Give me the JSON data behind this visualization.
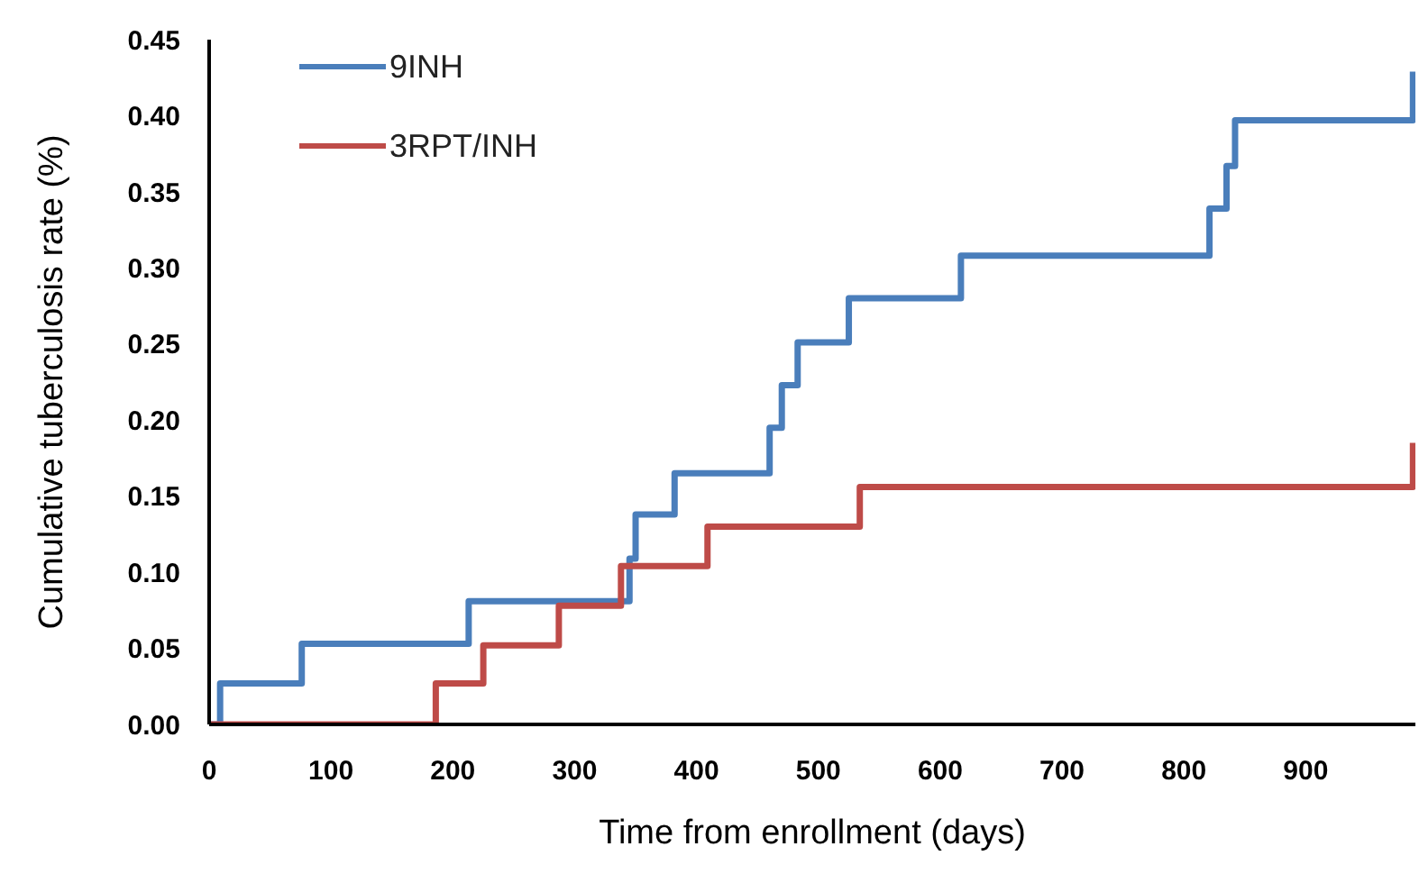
{
  "chart_data": {
    "type": "step",
    "xlabel": "Time from enrollment (days)",
    "ylabel": "Cumulative tuberculosis rate (%)",
    "xlim": [
      0,
      990
    ],
    "xticks": [
      0,
      100,
      200,
      300,
      400,
      500,
      600,
      700,
      800,
      900
    ],
    "ylim": [
      0,
      0.45
    ],
    "yticks": [
      {
        "value": 0,
        "label": "0.00"
      },
      {
        "value": 0.05,
        "label": "0.05"
      },
      {
        "value": 0.1,
        "label": "0.10"
      },
      {
        "value": 0.15,
        "label": "0.15"
      },
      {
        "value": 0.2,
        "label": "0.20"
      },
      {
        "value": 0.25,
        "label": "0.25"
      },
      {
        "value": 0.3,
        "label": "0.30"
      },
      {
        "value": 0.35,
        "label": "0.35"
      },
      {
        "value": 0.4,
        "label": "0.40"
      },
      {
        "value": 0.45,
        "label": "0.45"
      }
    ],
    "grid": false,
    "legend": "top left",
    "marker": "none",
    "line_style": "solid",
    "series": [
      {
        "name": "9INH",
        "color": "#4a7ebb",
        "x": [
          0,
          9,
          76,
          213,
          345,
          350,
          382,
          460,
          470,
          483,
          525,
          617,
          821,
          835,
          842,
          988
        ],
        "values": [
          0,
          0.027,
          0.053,
          0.081,
          0.109,
          0.138,
          0.165,
          0.195,
          0.223,
          0.251,
          0.28,
          0.308,
          0.339,
          0.367,
          0.397,
          0.429
        ]
      },
      {
        "name": "3RPT/INH",
        "color": "#be4b48",
        "x": [
          0,
          186,
          225,
          287,
          338,
          409,
          534,
          988
        ],
        "values": [
          0,
          0.027,
          0.052,
          0.078,
          0.104,
          0.13,
          0.156,
          0.185
        ]
      }
    ]
  }
}
